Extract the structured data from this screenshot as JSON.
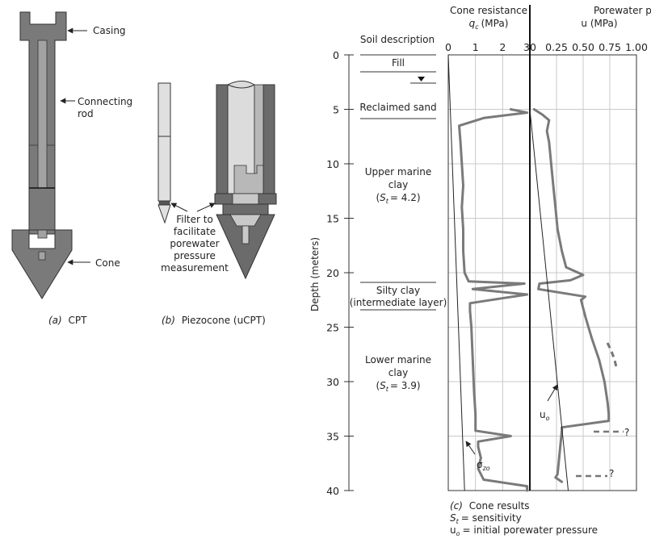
{
  "figure_a": {
    "labels": {
      "casing": "Casing",
      "connecting_rod_1": "Connecting",
      "connecting_rod_2": "rod",
      "cone": "Cone"
    },
    "caption_prefix": "(a)",
    "caption": "CPT"
  },
  "figure_b": {
    "labels": {
      "filter_1": "Filter to",
      "filter_2": "facilitate",
      "filter_3": "porewater",
      "filter_4": "pressure",
      "filter_5": "measurement"
    },
    "caption_prefix": "(b)",
    "caption": "Piezocone (uCPT)"
  },
  "figure_c": {
    "soil_description_header": "Soil description",
    "y_axis_label": "Depth (meters)",
    "layers": {
      "fill": "Fill",
      "reclaimed_sand": "Reclaimed sand",
      "upper_marine_1": "Upper marine",
      "upper_marine_2": "clay",
      "upper_marine_st": "= 4.2)",
      "silty_1": "Silty clay",
      "silty_2": "(intermediate layer)",
      "lower_marine_1": "Lower marine",
      "lower_marine_2": "clay",
      "lower_marine_st": "= 3.9)"
    },
    "qc_header_1": "Cone resistance",
    "qc_header_unit": "(MPa)",
    "u_header_1": "Porewater pressure",
    "u_header_2": "u (MPa)",
    "annotations": {
      "sigma": "σ",
      "sigma_sub": "zo",
      "uo": "u",
      "uo_sub": "o",
      "q1": "?",
      "q2": "?"
    },
    "caption_prefix": "(c)",
    "caption": "Cone results",
    "legend_st": "= sensitivity",
    "legend_uo": "= initial porewater pressure"
  },
  "chart_data": {
    "type": "line",
    "y_axis": {
      "label": "Depth (meters)",
      "range": [
        0,
        40
      ],
      "ticks": [
        0,
        5,
        10,
        15,
        20,
        25,
        30,
        35,
        40
      ]
    },
    "qc_axis": {
      "label": "Cone resistance qc (MPa)",
      "range": [
        0,
        3
      ],
      "ticks": [
        "0",
        "1",
        "2",
        "3"
      ]
    },
    "u_axis": {
      "label": "Porewater pressure u (MPa)",
      "range": [
        0,
        1
      ],
      "ticks": [
        "0",
        "0.25",
        "0.50",
        "0.75",
        "1.00"
      ]
    },
    "series": [
      {
        "name": "qc",
        "depth": [
          5.0,
          5.3,
          5.8,
          6.5,
          8,
          10,
          12,
          14,
          16,
          18,
          20,
          20.8,
          21.0,
          21.5,
          22.0,
          22.8,
          23.5,
          25,
          28,
          31,
          33,
          34.5,
          35.0,
          35.5,
          36,
          37,
          38,
          39,
          39.6,
          40
        ],
        "values": [
          2.3,
          2.9,
          1.3,
          0.4,
          0.45,
          0.5,
          0.55,
          0.5,
          0.55,
          0.55,
          0.6,
          0.75,
          2.8,
          0.9,
          2.9,
          0.8,
          0.8,
          0.85,
          0.9,
          0.95,
          1.0,
          1.0,
          2.3,
          1.1,
          1.1,
          1.2,
          1.1,
          1.3,
          2.9,
          2.9
        ]
      },
      {
        "name": "u",
        "depth": [
          5.0,
          5.5,
          6,
          7,
          8,
          10,
          12,
          14,
          16,
          18,
          19.5,
          20.2,
          20.7,
          21.0,
          21.5,
          22.2,
          22.5,
          24,
          26,
          28,
          30,
          32,
          33,
          33.6,
          34.2,
          34.5,
          38.5,
          38.8,
          39.2
        ],
        "values": [
          0.04,
          0.12,
          0.18,
          0.16,
          0.18,
          0.2,
          0.22,
          0.24,
          0.26,
          0.3,
          0.34,
          0.5,
          0.38,
          0.09,
          0.08,
          0.52,
          0.48,
          0.52,
          0.58,
          0.65,
          0.7,
          0.73,
          0.74,
          0.74,
          0.3,
          0.3,
          0.26,
          0.24,
          0.3
        ]
      },
      {
        "name": "σzo",
        "depth": [
          0,
          40
        ],
        "values": [
          0.0,
          0.6
        ]
      },
      {
        "name": "uo",
        "depth": [
          5,
          40
        ],
        "values": [
          0.0,
          0.36
        ]
      }
    ]
  }
}
